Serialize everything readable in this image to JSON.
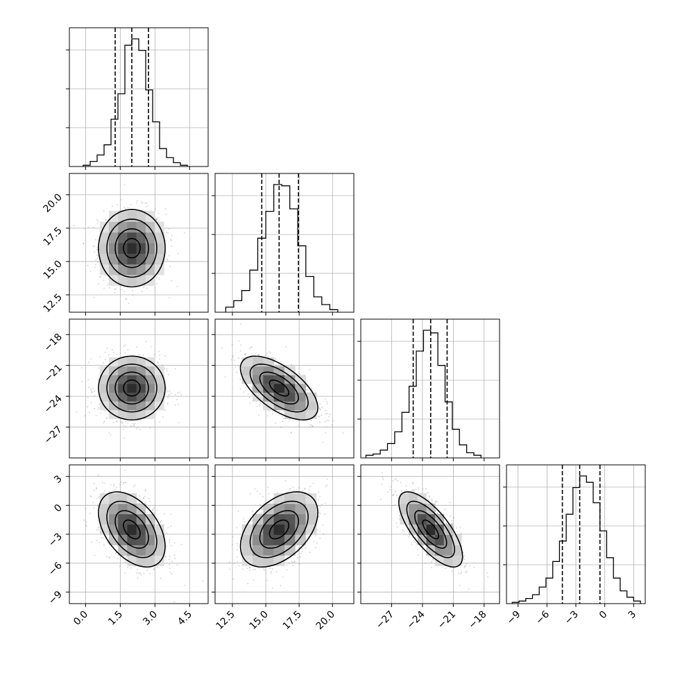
{
  "chart_data": {
    "type": "corner",
    "title": "",
    "n_params": 4,
    "params": [
      {
        "label": "",
        "mean": 2.0,
        "sd": 0.72,
        "range": [
          -0.7,
          5.3
        ],
        "ticks": [
          0.0,
          1.5,
          3.0,
          4.5
        ],
        "tick_labels": [
          "0.0",
          "1.5",
          "3.0",
          "4.5"
        ],
        "quantiles": [
          1.28,
          2.0,
          2.72
        ],
        "histogram": {
          "bins": [
            [
              -0.1,
              0.2
            ],
            [
              0.2,
              0.5
            ],
            [
              0.5,
              0.8
            ],
            [
              0.8,
              1.1
            ],
            [
              1.1,
              1.4
            ],
            [
              1.4,
              1.7
            ],
            [
              1.7,
              2.0
            ],
            [
              2.0,
              2.3
            ],
            [
              2.3,
              2.6
            ],
            [
              2.6,
              2.9
            ],
            [
              2.9,
              3.2
            ],
            [
              3.2,
              3.5
            ],
            [
              3.5,
              3.8
            ],
            [
              3.8,
              4.1
            ],
            [
              4.1,
              4.4
            ]
          ],
          "heights": [
            0.01,
            0.04,
            0.09,
            0.17,
            0.37,
            0.57,
            0.95,
            1.0,
            0.91,
            0.6,
            0.35,
            0.14,
            0.07,
            0.03,
            0.01
          ]
        }
      },
      {
        "label": "",
        "mean": 16.0,
        "sd": 1.45,
        "range": [
          11.2,
          21.6
        ],
        "ticks": [
          12.5,
          15.0,
          17.5,
          20.0
        ],
        "tick_labels": [
          "12.5",
          "15.0",
          "17.5",
          "20.0"
        ],
        "quantiles": [
          14.7,
          16.0,
          17.45
        ],
        "histogram": {
          "bins": [
            [
              12.0,
              12.6
            ],
            [
              12.6,
              13.2
            ],
            [
              13.2,
              13.8
            ],
            [
              13.8,
              14.4
            ],
            [
              14.4,
              15.0
            ],
            [
              15.0,
              15.6
            ],
            [
              15.6,
              16.2
            ],
            [
              16.2,
              16.8
            ],
            [
              16.8,
              17.4
            ],
            [
              17.4,
              18.0
            ],
            [
              18.0,
              18.6
            ],
            [
              18.6,
              19.2
            ],
            [
              19.2,
              19.8
            ],
            [
              19.8,
              20.4
            ]
          ],
          "heights": [
            0.04,
            0.09,
            0.17,
            0.33,
            0.58,
            0.79,
            1.0,
            0.99,
            0.81,
            0.52,
            0.28,
            0.12,
            0.06,
            0.02
          ]
        }
      },
      {
        "label": "",
        "mean": -23.2,
        "sd": 1.55,
        "range": [
          -30.0,
          -16.5
        ],
        "ticks": [
          -27,
          -24,
          -21,
          -18
        ],
        "tick_labels": [
          "−27",
          "−24",
          "−21",
          "−18"
        ],
        "quantiles": [
          -24.9,
          -23.2,
          -21.6
        ],
        "histogram": {
          "bins": [
            [
              -29.5,
              -28.8
            ],
            [
              -28.8,
              -28.1
            ],
            [
              -28.1,
              -27.4
            ],
            [
              -27.4,
              -26.7
            ],
            [
              -26.7,
              -26.0
            ],
            [
              -26.0,
              -25.3
            ],
            [
              -25.3,
              -24.6
            ],
            [
              -24.6,
              -23.9
            ],
            [
              -23.9,
              -23.2
            ],
            [
              -23.2,
              -22.5
            ],
            [
              -22.5,
              -21.8
            ],
            [
              -21.8,
              -21.1
            ],
            [
              -21.1,
              -20.4
            ],
            [
              -20.4,
              -19.7
            ],
            [
              -19.7,
              -19.0
            ],
            [
              -19.0,
              -18.3
            ]
          ],
          "heights": [
            0.02,
            0.03,
            0.06,
            0.11,
            0.2,
            0.35,
            0.55,
            0.82,
            0.98,
            0.96,
            0.71,
            0.43,
            0.22,
            0.1,
            0.04,
            0.02
          ]
        }
      },
      {
        "label": "",
        "mean": -2.5,
        "sd": 1.95,
        "range": [
          -10.2,
          4.2
        ],
        "ticks": [
          -9,
          -6,
          -3,
          0,
          3
        ],
        "tick_labels": [
          "−9",
          "−6",
          "−3",
          "0",
          "3"
        ],
        "quantiles": [
          -4.4,
          -2.6,
          -0.5
        ],
        "histogram": {
          "bins": [
            [
              -9.6,
              -8.9
            ],
            [
              -8.9,
              -8.2
            ],
            [
              -8.2,
              -7.5
            ],
            [
              -7.5,
              -6.8
            ],
            [
              -6.8,
              -6.1
            ],
            [
              -6.1,
              -5.4
            ],
            [
              -5.4,
              -4.7
            ],
            [
              -4.7,
              -4.0
            ],
            [
              -4.0,
              -3.3
            ],
            [
              -3.3,
              -2.6
            ],
            [
              -2.6,
              -1.9
            ],
            [
              -1.9,
              -1.2
            ],
            [
              -1.2,
              -0.5
            ],
            [
              -0.5,
              0.2
            ],
            [
              0.2,
              0.9
            ],
            [
              0.9,
              1.6
            ],
            [
              1.6,
              2.3
            ],
            [
              2.3,
              3.0
            ],
            [
              3.0,
              3.7
            ]
          ],
          "heights": [
            0.01,
            0.02,
            0.04,
            0.07,
            0.13,
            0.2,
            0.33,
            0.49,
            0.7,
            0.91,
            1.0,
            0.95,
            0.79,
            0.57,
            0.36,
            0.2,
            0.1,
            0.05,
            0.02
          ]
        }
      }
    ],
    "correlations": [
      [
        1.0,
        0.0,
        0.0,
        -0.45
      ],
      [
        0.0,
        1.0,
        -0.62,
        0.45
      ],
      [
        0.0,
        -0.62,
        1.0,
        -0.72
      ],
      [
        -0.45,
        0.45,
        -0.72,
        1.0
      ]
    ],
    "contour_levels_sigma": [
      0.5,
      1.0,
      1.5,
      2.0
    ],
    "grid": true,
    "tick_label_rotation_deg": 45,
    "colors": {
      "points": "#8c8c8c",
      "density_dark": "#1a1a1a",
      "grid": "#b0b0b0",
      "lines": "#000000"
    }
  }
}
